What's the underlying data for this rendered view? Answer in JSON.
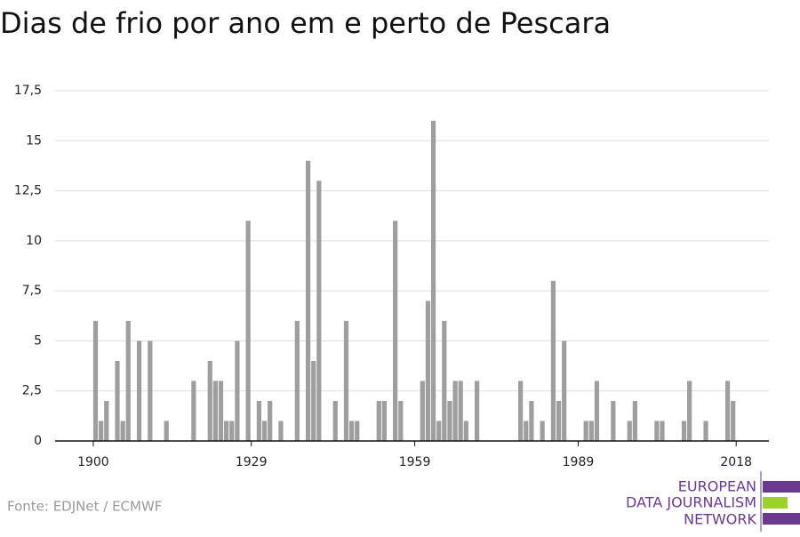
{
  "chart_data": {
    "type": "bar",
    "title": "Dias de frio por ano em e perto de Pescara",
    "x": [
      1900,
      1901,
      1902,
      1904,
      1905,
      1906,
      1908,
      1910,
      1913,
      1918,
      1921,
      1922,
      1923,
      1924,
      1925,
      1926,
      1928,
      1930,
      1931,
      1932,
      1934,
      1937,
      1939,
      1940,
      1941,
      1944,
      1946,
      1947,
      1948,
      1952,
      1953,
      1955,
      1956,
      1960,
      1961,
      1962,
      1963,
      1964,
      1965,
      1966,
      1967,
      1968,
      1970,
      1978,
      1979,
      1980,
      1982,
      1984,
      1985,
      1986,
      1990,
      1991,
      1992,
      1995,
      1998,
      1999,
      2003,
      2004,
      2008,
      2009,
      2012,
      2016,
      2017
    ],
    "values": [
      6,
      1,
      2,
      4,
      1,
      6,
      5,
      5,
      1,
      3,
      4,
      3,
      3,
      1,
      1,
      5,
      11,
      2,
      1,
      2,
      1,
      6,
      14,
      4,
      13,
      2,
      6,
      1,
      1,
      2,
      2,
      11,
      2,
      3,
      7,
      16,
      1,
      6,
      2,
      3,
      3,
      1,
      3,
      3,
      1,
      2,
      1,
      8,
      2,
      5,
      1,
      1,
      3,
      2,
      1,
      2,
      1,
      1,
      1,
      3,
      1,
      3,
      2
    ],
    "color": "#9e9e9e",
    "xlim": [
      1893,
      2024
    ],
    "xticks": [
      1900,
      1929,
      1959,
      1989,
      2018
    ],
    "ylim": [
      0,
      17.5
    ],
    "yticks": [
      0,
      {
        "value": 2.5,
        "label": "2,5"
      },
      5,
      {
        "value": 7.5,
        "label": "7,5"
      },
      10,
      {
        "value": 12.5,
        "label": "12,5"
      },
      15,
      {
        "value": 17.5,
        "label": "17,5"
      }
    ],
    "grid": true
  },
  "source": "Fonte: EDJNet / ECMWF",
  "logo": [
    "EUROPEAN",
    "DATA JOURNALISM",
    "NETWORK"
  ]
}
